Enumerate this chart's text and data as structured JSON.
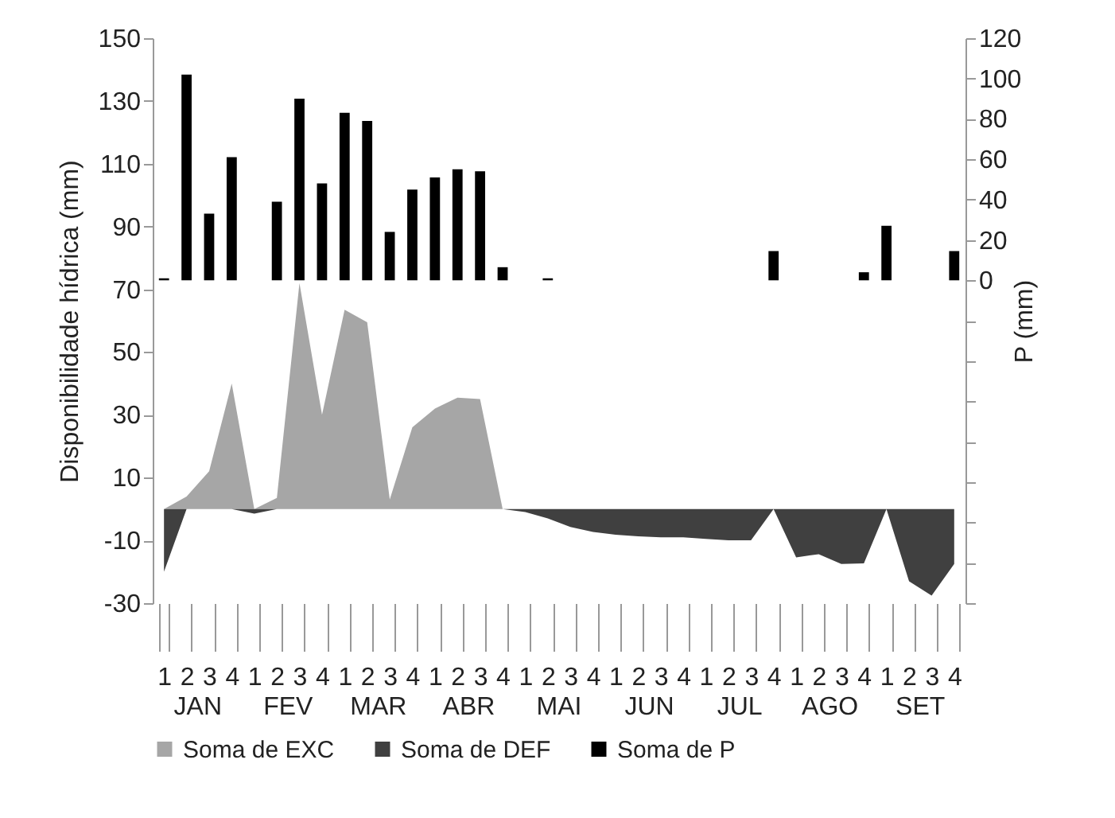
{
  "chart_data": {
    "type": "area",
    "ylabel": "Disponibilidade hídrica (mm)",
    "y2label": "P (mm)",
    "categories": [
      "1",
      "2",
      "3",
      "4",
      "1",
      "2",
      "3",
      "4",
      "1",
      "2",
      "3",
      "4",
      "1",
      "2",
      "3",
      "4",
      "1",
      "2",
      "3",
      "4",
      "1",
      "2",
      "3",
      "4",
      "1",
      "2",
      "3",
      "4",
      "1",
      "2",
      "3",
      "4",
      "1",
      "2",
      "3",
      "4"
    ],
    "annotations": [
      "JAN",
      "FEV",
      "MAR",
      "ABR",
      "MAI",
      "JUN",
      "JUL",
      "AGO",
      "SET"
    ],
    "series": [
      {
        "name": "Soma de EXC",
        "color": "#a6a6a6",
        "values": [
          0,
          4,
          12,
          40,
          0,
          3.5,
          72,
          30,
          63.5,
          59.5,
          3,
          26,
          32,
          35.5,
          35,
          0,
          0,
          0,
          0,
          0,
          0,
          0,
          0,
          0,
          0,
          0,
          0,
          0,
          0,
          0,
          0,
          0,
          0,
          0,
          0,
          0
        ]
      },
      {
        "name": "Soma de DEF",
        "color": "#404040",
        "values": [
          -20,
          0,
          0,
          0,
          -1.5,
          0,
          0,
          0,
          0,
          0,
          0,
          0,
          0,
          0,
          0,
          0,
          -1,
          -3,
          -5.7,
          -7.3,
          -8.2,
          -8.7,
          -9,
          -9,
          -9.5,
          -10,
          -10,
          0,
          -15.4,
          -14.4,
          -17.5,
          -17.3,
          0,
          -23,
          -27.6,
          -17.5
        ]
      },
      {
        "name": "Soma de P",
        "type": "bar",
        "axis": "y2",
        "color": "#000000",
        "values": [
          1,
          102,
          33,
          61,
          0,
          39,
          90,
          48,
          83,
          79,
          24,
          45,
          51,
          55,
          54,
          6.5,
          0,
          1,
          0,
          0,
          0,
          0,
          0,
          0,
          0,
          0,
          0,
          14.5,
          0,
          0,
          0,
          4,
          27,
          0,
          0,
          14.5
        ]
      }
    ],
    "ylim": [
      -30,
      150
    ],
    "yticks": [
      -30,
      -10,
      10,
      30,
      50,
      70,
      90,
      110,
      130,
      150
    ],
    "y2lim": [
      -160,
      120
    ],
    "y2ticks": [
      {
        "value": -160,
        "label": null
      },
      {
        "value": -140,
        "label": null
      },
      {
        "value": -120,
        "label": null
      },
      {
        "value": -100,
        "label": null
      },
      {
        "value": -80,
        "label": null
      },
      {
        "value": -60,
        "label": null
      },
      {
        "value": -40,
        "label": null
      },
      {
        "value": -20,
        "label": null
      },
      0,
      20,
      40,
      60,
      80,
      100,
      120
    ],
    "legend": "bottom"
  }
}
